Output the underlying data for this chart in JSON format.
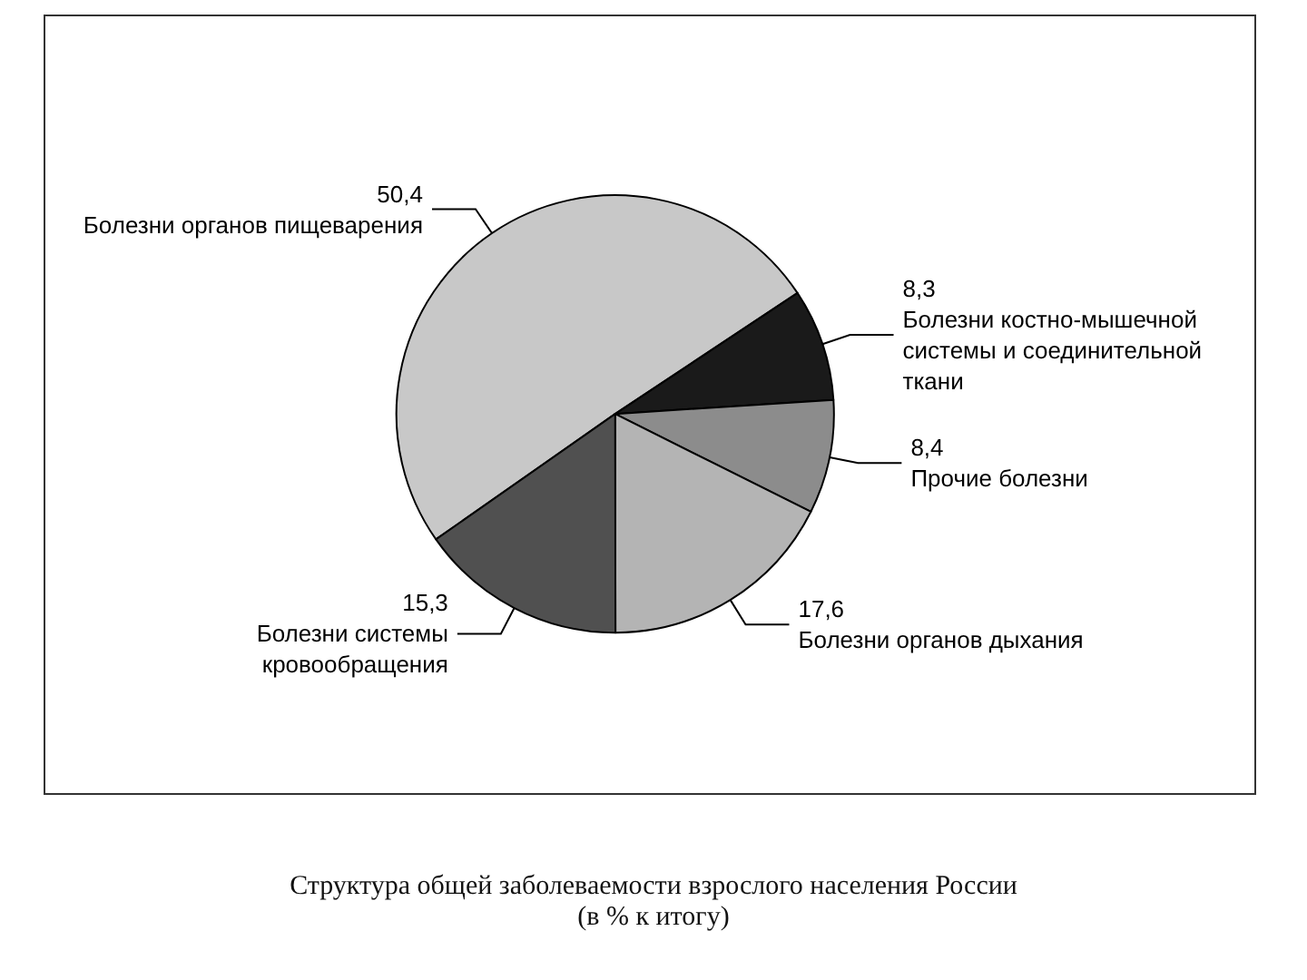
{
  "chart_data": {
    "type": "pie",
    "title": "Структура общей заболеваемости взрослого населения России",
    "subtitle": "(в % к итогу)",
    "categories": [
      "Болезни органов пищеварения",
      "Болезни костно-мышечной системы и соединительной ткани",
      "Прочие болезни",
      "Болезни органов дыхания",
      "Болезни системы кровообращения"
    ],
    "values": [
      50.4,
      8.3,
      8.4,
      17.6,
      15.3
    ],
    "value_labels": [
      "50,4",
      "8,3",
      "8,4",
      "17,6",
      "15,3"
    ],
    "colors": [
      "#c8c8c8",
      "#1a1a1a",
      "#8c8c8c",
      "#b4b4b4",
      "#505050"
    ],
    "legend": false
  }
}
